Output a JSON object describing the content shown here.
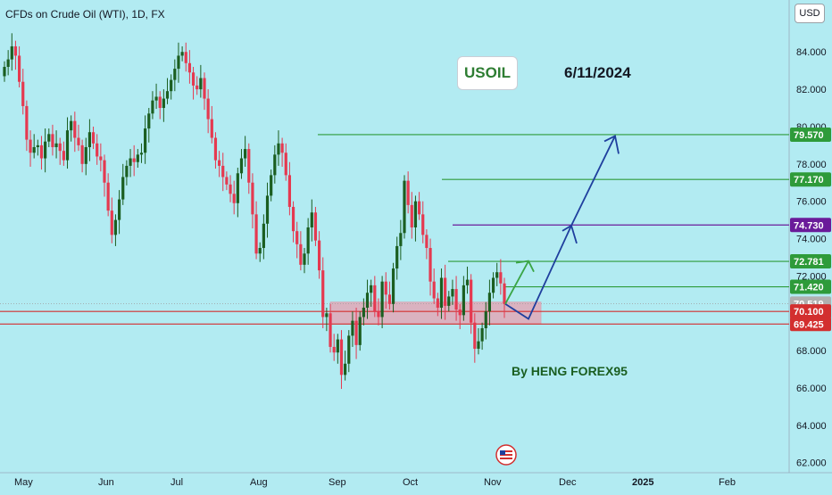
{
  "header": {
    "symbol_title": "CFDs on Crude Oil (WTI), 1D, FX",
    "currency_button": "USD"
  },
  "annotations": {
    "ticker": "USOIL",
    "date": "6/11/2024",
    "author": "By HENG FOREX95"
  },
  "colors": {
    "background": "#b2ebf2",
    "up_candle": "#1b5e20",
    "down_candle": "#e53950",
    "green_level": "#2e9b3a",
    "purple_level": "#6a1b9a",
    "red_level": "#d32f2f",
    "support_zone": "#e8a0b0",
    "projection_arrow": "#1f3f9e",
    "green_arrow": "#3aa545",
    "current_price": "#9e9e9e"
  },
  "chart_data": {
    "type": "candlestick",
    "title": "CFDs on Crude Oil (WTI), 1D, FX",
    "ylim": [
      61.7,
      86.4
    ],
    "y_ticks": [
      "84.000",
      "82.000",
      "80.000",
      "78.000",
      "76.000",
      "74.000",
      "72.000",
      "70.000",
      "68.000",
      "66.000",
      "64.000",
      "62.000"
    ],
    "x_ticks": [
      "May",
      "Jun",
      "Jul",
      "Aug",
      "Sep",
      "Oct",
      "Nov",
      "Dec",
      "2025",
      "Feb"
    ],
    "grid": false,
    "price_levels": [
      {
        "label": "79.570",
        "value": 79.57,
        "role": "target",
        "color": "#2e9b3a"
      },
      {
        "label": "77.170",
        "value": 77.17,
        "role": "target",
        "color": "#2e9b3a"
      },
      {
        "label": "74.730",
        "value": 74.73,
        "role": "resistance",
        "color": "#6a1b9a"
      },
      {
        "label": "72.781",
        "value": 72.781,
        "role": "target",
        "color": "#2e9b3a"
      },
      {
        "label": "71.420",
        "value": 71.42,
        "role": "target",
        "color": "#2e9b3a"
      },
      {
        "label": "70.519",
        "value": 70.519,
        "role": "current",
        "color": "#9e9e9e"
      },
      {
        "label": "70.100",
        "value": 70.1,
        "role": "support",
        "color": "#d32f2f"
      },
      {
        "label": "69.425",
        "value": 69.425,
        "role": "support",
        "color": "#d32f2f"
      }
    ],
    "support_zone": [
      69.425,
      70.6
    ],
    "projection_path": [
      {
        "date": "2024-11-06",
        "value": 70.5
      },
      {
        "date": "2024-11-13",
        "value": 69.7
      },
      {
        "date": "2024-11-28",
        "value": 74.7
      },
      {
        "date": "2024-12-18",
        "value": 79.5
      }
    ],
    "green_arrow_path": [
      {
        "date": "2024-11-06",
        "value": 70.5
      },
      {
        "date": "2024-11-13",
        "value": 72.8
      }
    ],
    "ohlc_close": [
      83.2,
      83.6,
      84.3,
      83.8,
      82.4,
      81.1,
      79.3,
      78.6,
      78.9,
      79.0,
      78.3,
      79.2,
      79.6,
      78.9,
      79.1,
      78.7,
      78.2,
      79.8,
      80.3,
      79.4,
      79.0,
      78.0,
      78.9,
      79.7,
      79.1,
      78.4,
      78.2,
      77.0,
      75.5,
      74.2,
      75.0,
      76.1,
      77.3,
      77.9,
      78.3,
      78.1,
      78.5,
      78.6,
      79.9,
      80.7,
      81.4,
      81.6,
      81.0,
      81.5,
      81.9,
      82.5,
      83.1,
      83.8,
      84.0,
      83.4,
      82.9,
      82.2,
      82.0,
      82.6,
      81.5,
      80.4,
      79.4,
      78.2,
      77.9,
      77.3,
      76.9,
      76.4,
      75.9,
      77.5,
      78.3,
      78.8,
      77.0,
      75.3,
      73.2,
      73.5,
      74.8,
      76.3,
      77.4,
      78.5,
      79.1,
      78.6,
      77.4,
      75.7,
      74.4,
      73.7,
      72.6,
      73.2,
      74.6,
      75.4,
      73.9,
      72.3,
      69.8,
      70.0,
      68.2,
      67.9,
      68.6,
      66.7,
      67.3,
      68.8,
      69.6,
      68.3,
      69.8,
      70.3,
      71.1,
      71.5,
      70.1,
      69.8,
      71.7,
      71.0,
      70.5,
      72.4,
      73.6,
      74.3,
      77.1,
      75.8,
      74.6,
      76.0,
      75.3,
      74.2,
      73.5,
      71.7,
      70.8,
      70.3,
      71.9,
      70.4,
      70.9,
      71.3,
      70.2,
      69.9,
      71.5,
      71.8,
      69.5,
      68.1,
      68.5,
      69.2,
      70.1,
      71.1,
      71.9,
      72.2,
      71.6,
      70.5
    ]
  }
}
